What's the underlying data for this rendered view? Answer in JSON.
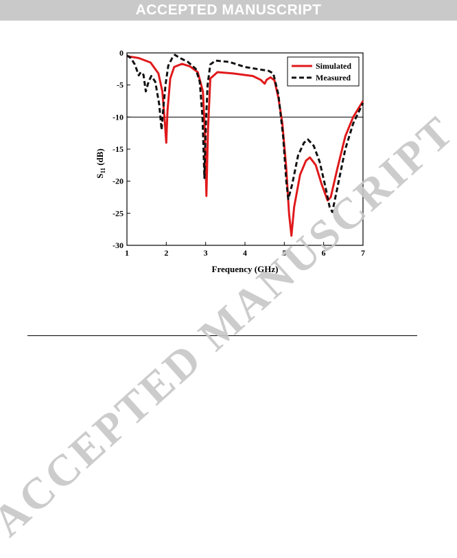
{
  "banner": {
    "text": "ACCEPTED MANUSCRIPT"
  },
  "watermark": {
    "text": "ACCEPTED MANUSCRIPT",
    "color": "#c6c6c6"
  },
  "chart_data": {
    "type": "line",
    "xlabel": "Frequency (GHz)",
    "ylabel_main": "S",
    "ylabel_sub": "11",
    "ylabel_unit": " (dB)",
    "xlim": [
      1,
      7
    ],
    "ylim": [
      -30,
      0
    ],
    "xticks": [
      1,
      2,
      3,
      4,
      5,
      6,
      7
    ],
    "yticks": [
      0,
      -5,
      -10,
      -15,
      -20,
      -25,
      -30
    ],
    "reference_line_y": -10,
    "legend_position": "top-right",
    "series": [
      {
        "name": "Simulated",
        "color": "#e0191b",
        "style": "solid",
        "points": [
          [
            1.0,
            -0.5
          ],
          [
            1.3,
            -0.8
          ],
          [
            1.6,
            -1.5
          ],
          [
            1.8,
            -3.2
          ],
          [
            1.9,
            -6.0
          ],
          [
            1.96,
            -10.5
          ],
          [
            2.0,
            -14.0
          ],
          [
            2.03,
            -9.0
          ],
          [
            2.1,
            -4.0
          ],
          [
            2.2,
            -2.2
          ],
          [
            2.4,
            -1.7
          ],
          [
            2.6,
            -2.1
          ],
          [
            2.8,
            -3.0
          ],
          [
            2.93,
            -6.0
          ],
          [
            2.98,
            -12.0
          ],
          [
            3.02,
            -22.3
          ],
          [
            3.06,
            -12.0
          ],
          [
            3.12,
            -4.0
          ],
          [
            3.3,
            -3.0
          ],
          [
            3.7,
            -3.2
          ],
          [
            4.2,
            -3.6
          ],
          [
            4.4,
            -4.2
          ],
          [
            4.5,
            -4.8
          ],
          [
            4.55,
            -4.2
          ],
          [
            4.65,
            -3.8
          ],
          [
            4.75,
            -4.3
          ],
          [
            4.85,
            -7.0
          ],
          [
            4.95,
            -11.0
          ],
          [
            5.05,
            -18.0
          ],
          [
            5.12,
            -25.0
          ],
          [
            5.18,
            -28.5
          ],
          [
            5.25,
            -24.0
          ],
          [
            5.4,
            -19.0
          ],
          [
            5.55,
            -16.8
          ],
          [
            5.65,
            -16.3
          ],
          [
            5.8,
            -17.5
          ],
          [
            5.95,
            -20.5
          ],
          [
            6.1,
            -23.0
          ],
          [
            6.18,
            -22.5
          ],
          [
            6.35,
            -18.0
          ],
          [
            6.55,
            -13.0
          ],
          [
            6.75,
            -10.0
          ],
          [
            7.0,
            -7.5
          ]
        ]
      },
      {
        "name": "Measured",
        "color": "#111111",
        "style": "dashed",
        "points": [
          [
            1.0,
            -0.4
          ],
          [
            1.1,
            -0.8
          ],
          [
            1.2,
            -1.8
          ],
          [
            1.3,
            -3.5
          ],
          [
            1.35,
            -3.0
          ],
          [
            1.42,
            -3.4
          ],
          [
            1.48,
            -6.0
          ],
          [
            1.55,
            -4.5
          ],
          [
            1.62,
            -3.6
          ],
          [
            1.72,
            -4.5
          ],
          [
            1.82,
            -8.0
          ],
          [
            1.88,
            -12.0
          ],
          [
            1.92,
            -9.0
          ],
          [
            1.98,
            -5.0
          ],
          [
            2.05,
            -2.0
          ],
          [
            2.15,
            -0.8
          ],
          [
            2.22,
            -0.3
          ],
          [
            2.35,
            -0.8
          ],
          [
            2.55,
            -1.4
          ],
          [
            2.75,
            -2.5
          ],
          [
            2.85,
            -4.5
          ],
          [
            2.92,
            -10.0
          ],
          [
            2.97,
            -19.5
          ],
          [
            3.0,
            -12.0
          ],
          [
            3.05,
            -5.0
          ],
          [
            3.12,
            -1.8
          ],
          [
            3.25,
            -1.2
          ],
          [
            3.6,
            -1.4
          ],
          [
            4.0,
            -2.2
          ],
          [
            4.4,
            -2.6
          ],
          [
            4.6,
            -2.8
          ],
          [
            4.72,
            -3.2
          ],
          [
            4.85,
            -6.5
          ],
          [
            4.97,
            -13.0
          ],
          [
            5.05,
            -20.0
          ],
          [
            5.1,
            -22.8
          ],
          [
            5.2,
            -20.5
          ],
          [
            5.35,
            -16.0
          ],
          [
            5.5,
            -14.0
          ],
          [
            5.6,
            -13.5
          ],
          [
            5.75,
            -14.5
          ],
          [
            5.9,
            -17.0
          ],
          [
            6.05,
            -21.0
          ],
          [
            6.15,
            -24.0
          ],
          [
            6.22,
            -24.8
          ],
          [
            6.35,
            -21.0
          ],
          [
            6.55,
            -15.0
          ],
          [
            6.75,
            -11.0
          ],
          [
            7.0,
            -7.8
          ]
        ]
      }
    ]
  }
}
